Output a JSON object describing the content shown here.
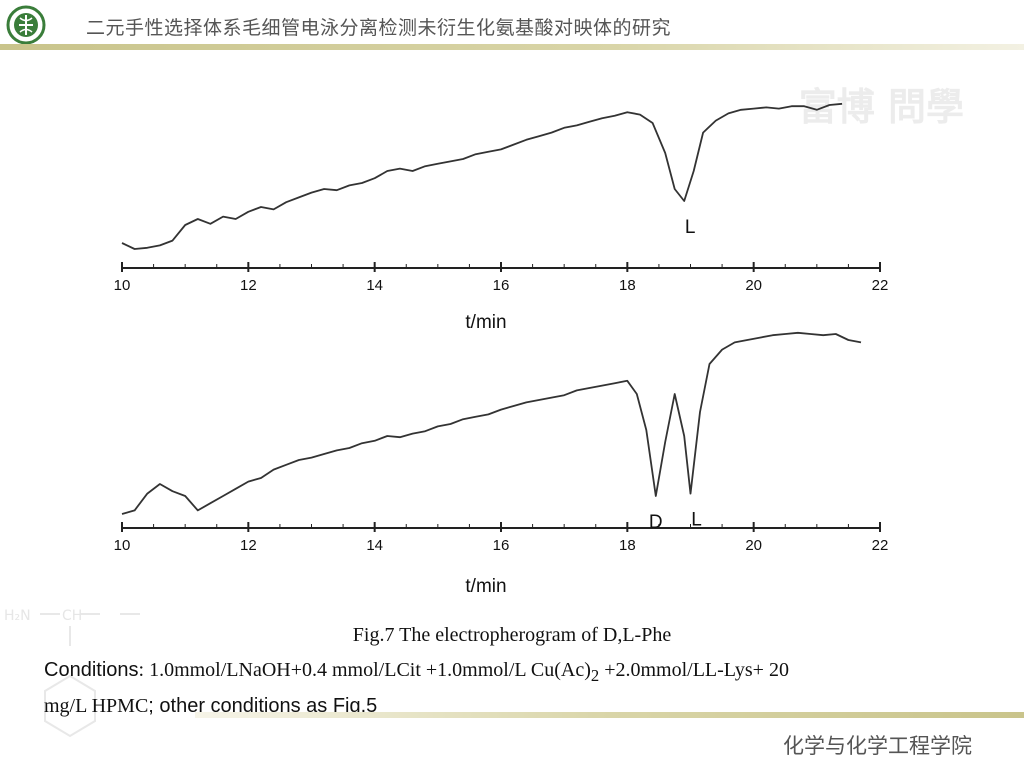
{
  "header": {
    "title": "二元手性选择体系毛细管电泳分离检测未衍生化氨基酸对映体的研究"
  },
  "watermark": {
    "text": "富博 問學"
  },
  "chart_data": [
    {
      "type": "line",
      "xlabel": "t/min",
      "xlim": [
        10,
        22
      ],
      "ticks": [
        "10",
        "12",
        "14",
        "16",
        "18",
        "20",
        "22"
      ],
      "series": [
        {
          "x": [
            10.0,
            10.2,
            10.4,
            10.6,
            10.8,
            11.0,
            11.2,
            11.4,
            11.6,
            11.8,
            12.0,
            12.2,
            12.4,
            12.6,
            12.8,
            13.0,
            13.2,
            13.4,
            13.6,
            13.8,
            14.0,
            14.2,
            14.4,
            14.6,
            14.8,
            15.0,
            15.2,
            15.4,
            15.6,
            15.8,
            16.0,
            16.2,
            16.4,
            16.6,
            16.8,
            17.0,
            17.2,
            17.4,
            17.6,
            17.8,
            18.0,
            18.2,
            18.4,
            18.6,
            18.75,
            18.9,
            19.05,
            19.2,
            19.4,
            19.6,
            19.8,
            20.0,
            20.2,
            20.4,
            20.6,
            20.8,
            21.0,
            21.2,
            21.4
          ],
          "y": [
            0.1,
            0.05,
            0.06,
            0.08,
            0.12,
            0.25,
            0.3,
            0.26,
            0.32,
            0.3,
            0.36,
            0.4,
            0.38,
            0.44,
            0.48,
            0.52,
            0.55,
            0.54,
            0.58,
            0.6,
            0.64,
            0.7,
            0.72,
            0.7,
            0.74,
            0.76,
            0.78,
            0.8,
            0.84,
            0.86,
            0.88,
            0.92,
            0.96,
            0.99,
            1.02,
            1.06,
            1.08,
            1.11,
            1.14,
            1.16,
            1.19,
            1.17,
            1.1,
            0.85,
            0.55,
            0.45,
            0.7,
            1.02,
            1.12,
            1.18,
            1.21,
            1.22,
            1.23,
            1.22,
            1.24,
            1.24,
            1.21,
            1.25,
            1.26
          ]
        }
      ],
      "annotations": [
        "L"
      ]
    },
    {
      "type": "line",
      "xlabel": "t/min",
      "xlim": [
        10,
        22
      ],
      "ticks": [
        "10",
        "12",
        "14",
        "16",
        "18",
        "20",
        "22"
      ],
      "series": [
        {
          "x": [
            10.0,
            10.2,
            10.4,
            10.6,
            10.8,
            11.0,
            11.2,
            11.4,
            11.6,
            11.8,
            12.0,
            12.2,
            12.4,
            12.6,
            12.8,
            13.0,
            13.2,
            13.4,
            13.6,
            13.8,
            14.0,
            14.2,
            14.4,
            14.6,
            14.8,
            15.0,
            15.2,
            15.4,
            15.6,
            15.8,
            16.0,
            16.2,
            16.4,
            16.6,
            16.8,
            17.0,
            17.2,
            17.4,
            17.6,
            17.8,
            18.0,
            18.15,
            18.3,
            18.45,
            18.6,
            18.75,
            18.9,
            19.0,
            19.15,
            19.3,
            19.5,
            19.7,
            19.9,
            20.1,
            20.3,
            20.5,
            20.7,
            20.9,
            21.1,
            21.3,
            21.5,
            21.7
          ],
          "y": [
            0.05,
            0.08,
            0.22,
            0.3,
            0.24,
            0.2,
            0.08,
            0.14,
            0.2,
            0.26,
            0.32,
            0.35,
            0.42,
            0.46,
            0.5,
            0.52,
            0.55,
            0.58,
            0.6,
            0.64,
            0.66,
            0.7,
            0.69,
            0.72,
            0.74,
            0.78,
            0.8,
            0.84,
            0.86,
            0.88,
            0.92,
            0.95,
            0.98,
            1.0,
            1.02,
            1.04,
            1.08,
            1.1,
            1.12,
            1.14,
            1.16,
            1.05,
            0.75,
            0.2,
            0.65,
            1.05,
            0.7,
            0.22,
            0.9,
            1.3,
            1.42,
            1.48,
            1.5,
            1.52,
            1.54,
            1.55,
            1.56,
            1.55,
            1.54,
            1.55,
            1.5,
            1.48
          ]
        }
      ],
      "annotations": [
        "D",
        "L"
      ]
    }
  ],
  "caption": {
    "figure": "Fig.7 The electropherogram  of  D,L-Phe",
    "conditions_label": "Conditions",
    "conditions_main": ": 1.0mmol/LNaOH+0.4 mmol/LCit +1.0mmol/L Cu(Ac)",
    "conditions_sub": "2",
    "conditions_rest": " +2.0mmol/LL-Lys+ 20",
    "conditions_line2": "mg/L HPMC",
    "conditions_tail": "; other conditions as Fig.5"
  },
  "footer": {
    "text": "化学与化学工程学院"
  },
  "colors": {
    "trace": "#333333",
    "accent_bar": "#c9c48b",
    "logo_green": "#3a7d3a"
  }
}
